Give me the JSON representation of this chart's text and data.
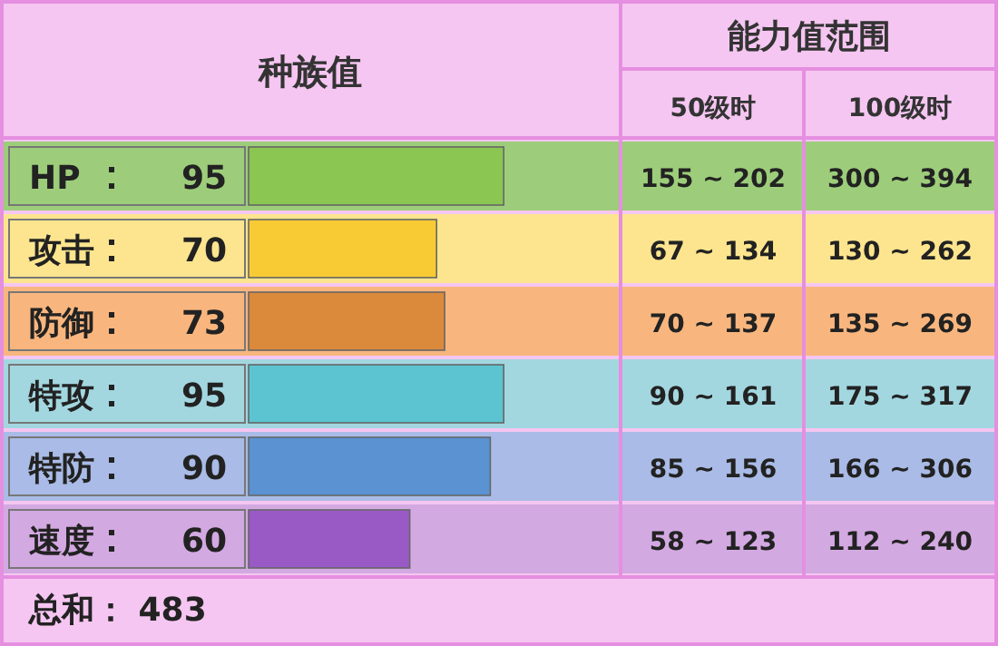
{
  "chart_data": {
    "type": "bar",
    "orientation": "horizontal",
    "title": "种族值",
    "categories": [
      "HP",
      "攻击",
      "防御",
      "特攻",
      "特防",
      "速度"
    ],
    "values": [
      95,
      70,
      73,
      95,
      90,
      60
    ],
    "colors": [
      "#8bc653",
      "#f8cb34",
      "#db8a3c",
      "#5cc4d0",
      "#5a92d2",
      "#9a5ac6"
    ],
    "data_labels": true,
    "annotations": [
      "能力值范围",
      "50级时",
      "100级时",
      "155 ~ 202",
      "300 ~ 394",
      "67 ~ 134",
      "130 ~ 262",
      "70 ~ 137",
      "135 ~ 269",
      "90 ~ 161",
      "175 ~ 317",
      "85 ~ 156",
      "166 ~ 306",
      "58 ~ 123",
      "112 ~ 240",
      "总和：  483"
    ]
  }
}
